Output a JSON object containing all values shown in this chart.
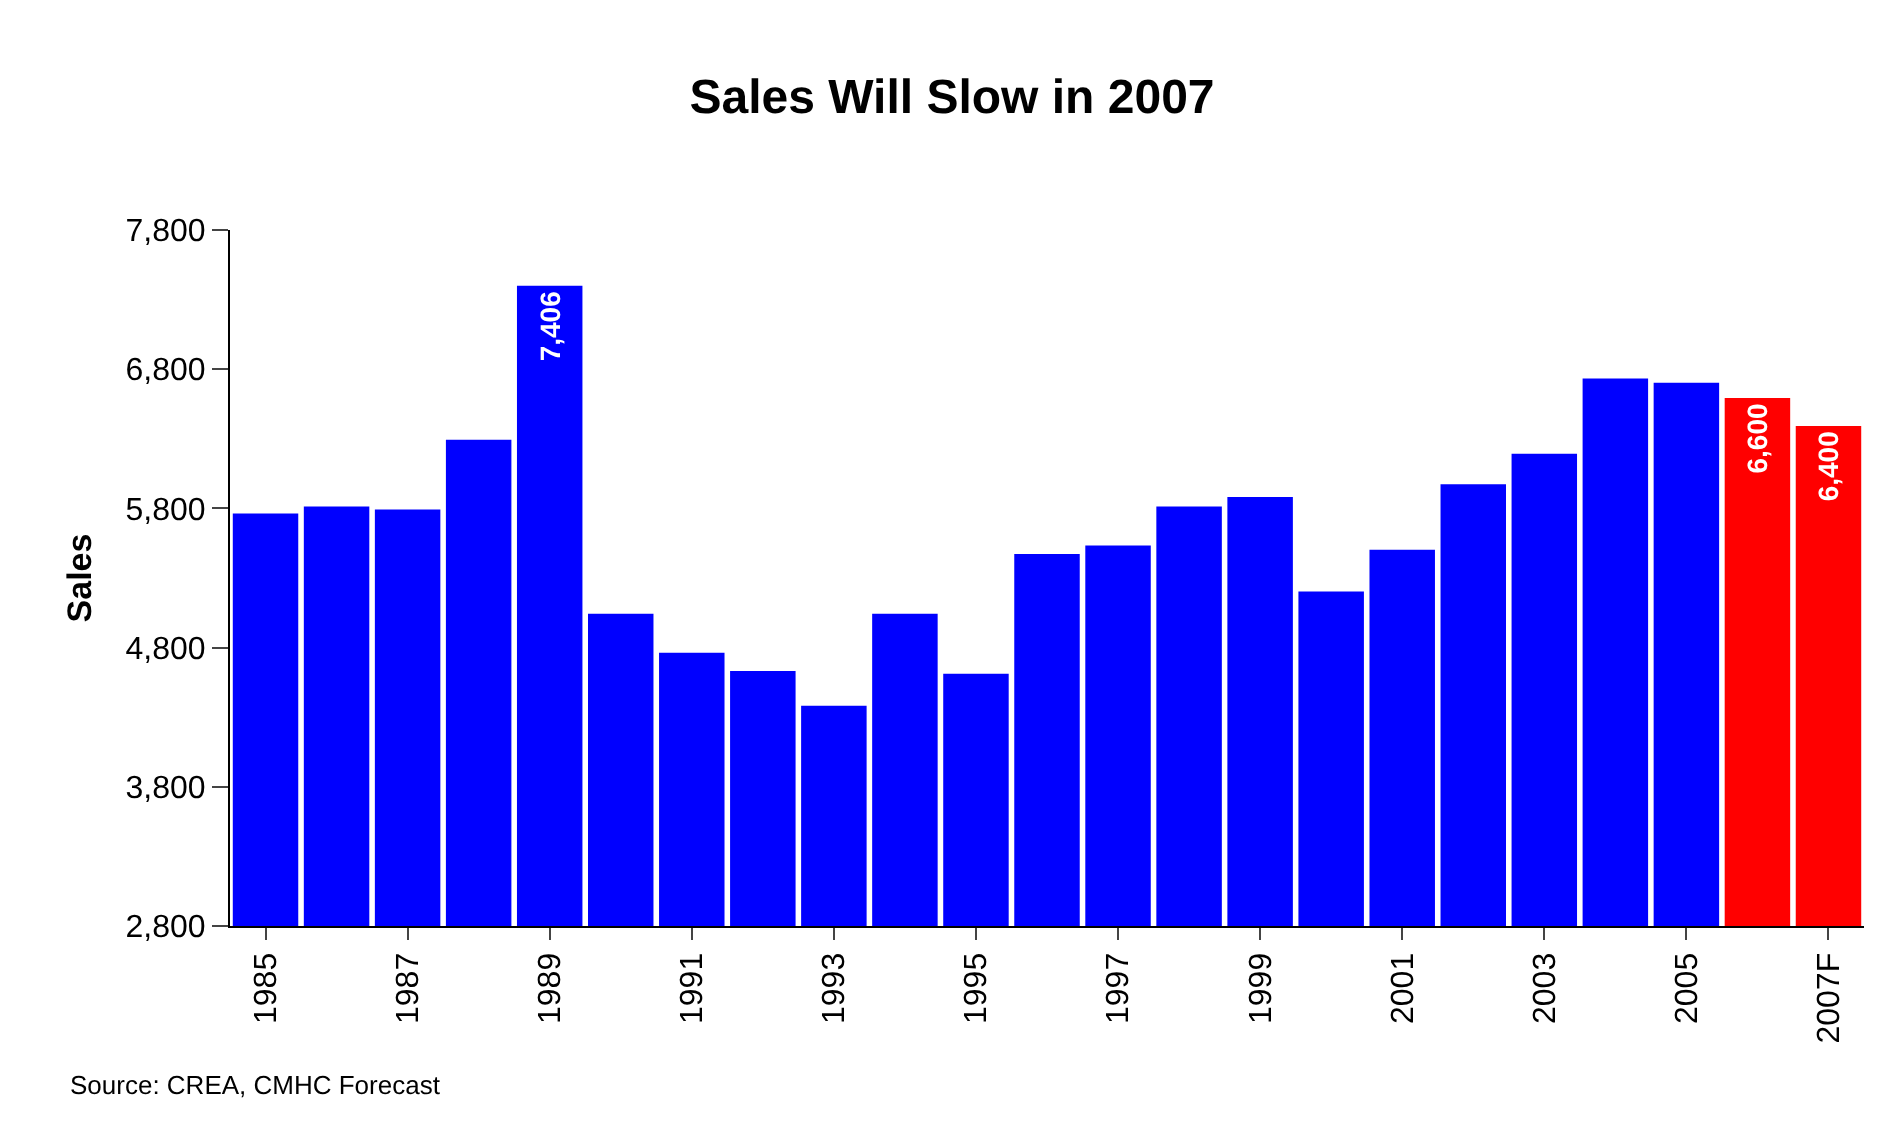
{
  "chart_data": {
    "type": "bar",
    "title": "Sales Will Slow in 2007",
    "ylabel": "Sales",
    "categories": [
      "1985",
      null,
      "1987",
      null,
      "1989",
      null,
      "1991",
      null,
      "1993",
      null,
      "1995",
      null,
      "1997",
      null,
      "1999",
      null,
      "2001",
      null,
      "2003",
      null,
      "2005",
      null,
      "2007F"
    ],
    "values": [
      5770,
      5820,
      5800,
      6300,
      7406,
      5050,
      4770,
      4640,
      4390,
      5050,
      4620,
      5480,
      5540,
      5820,
      5890,
      5210,
      5510,
      5980,
      6200,
      6740,
      6710,
      6600,
      6400
    ],
    "colors": [
      "#0000ff",
      "#0000ff",
      "#0000ff",
      "#0000ff",
      "#0000ff",
      "#0000ff",
      "#0000ff",
      "#0000ff",
      "#0000ff",
      "#0000ff",
      "#0000ff",
      "#0000ff",
      "#0000ff",
      "#0000ff",
      "#0000ff",
      "#0000ff",
      "#0000ff",
      "#0000ff",
      "#0000ff",
      "#0000ff",
      "#0000ff",
      "#ff0000",
      "#ff0000"
    ],
    "value_labels": [
      null,
      null,
      null,
      null,
      "7,406",
      null,
      null,
      null,
      null,
      null,
      null,
      null,
      null,
      null,
      null,
      null,
      null,
      null,
      null,
      null,
      null,
      "6,600",
      "6,400"
    ],
    "ylim": [
      2800,
      7800
    ],
    "yticks": [
      {
        "value": 2800,
        "label": "2,800"
      },
      {
        "value": 3800,
        "label": "3,800"
      },
      {
        "value": 4800,
        "label": "4,800"
      },
      {
        "value": 5800,
        "label": "5,800"
      },
      {
        "value": 6800,
        "label": "6,800"
      },
      {
        "value": 7800,
        "label": "7,800"
      }
    ],
    "grid": false,
    "annotations": [
      "Source: CREA, CMHC Forecast"
    ]
  }
}
